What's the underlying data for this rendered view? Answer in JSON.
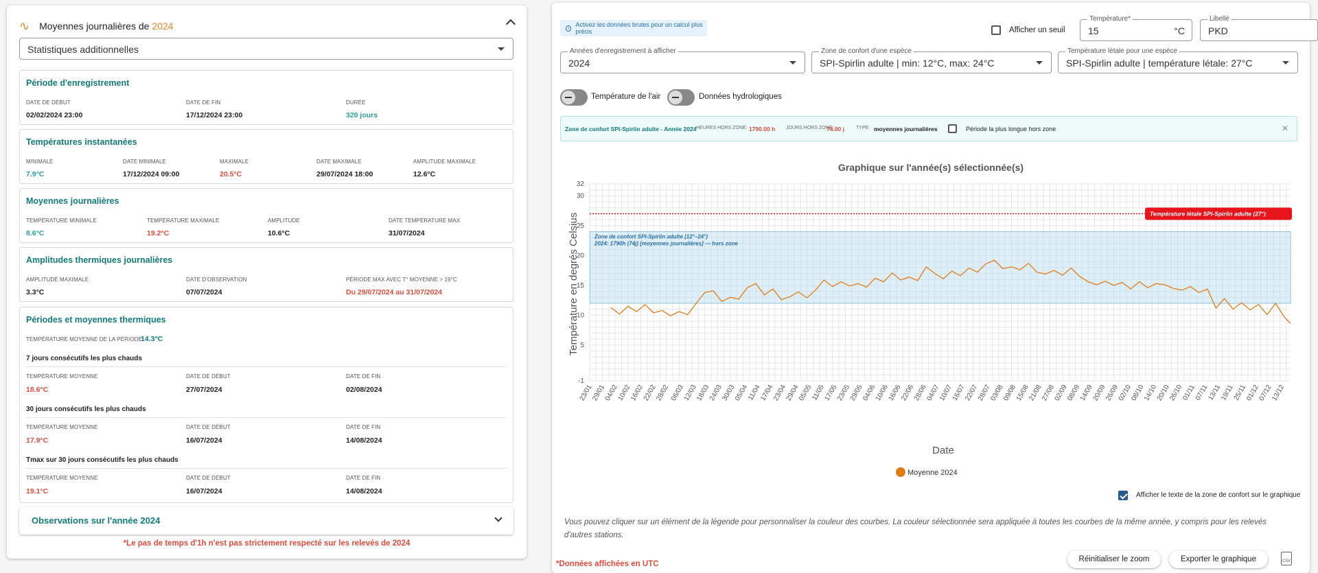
{
  "left": {
    "title_prefix": "Moyennes journalières de",
    "title_year": "2024",
    "select_value": "Statistiques additionnelles",
    "periode": {
      "title": "Période d'enregistrement",
      "start_label": "DATE DE DÉBUT",
      "start": "02/02/2024 23:00",
      "end_label": "DATE DE FIN",
      "end": "17/12/2024 23:00",
      "dur_label": "DURÉE",
      "dur": "320 jours"
    },
    "inst": {
      "title": "Températures instantanées",
      "min_label": "MINIMALE",
      "min": "7.9°C",
      "date_min_label": "DATE MINIMALE",
      "date_min": "17/12/2024 09:00",
      "max_label": "MAXIMALE",
      "max": "20.5°C",
      "date_max_label": "DATE MAXIMALE",
      "date_max": "29/07/2024 18:00",
      "amp_label": "AMPLITUDE MAXIMALE",
      "amp": "12.6°C"
    },
    "moy": {
      "title": "Moyennes journalières",
      "tmin_label": "TEMPÉRATURE MINIMALE",
      "tmin": "8.6°C",
      "tmax_label": "TEMPÉRATURE MAXIMALE",
      "tmax": "19.2°C",
      "amp_label": "AMPLITUDE",
      "amp": "10.6°C",
      "date_label": "DATE TEMPÉRATURE MAX",
      "date": "31/07/2024"
    },
    "ampl": {
      "title": "Amplitudes thermiques journalières",
      "amp_label": "AMPLITUDE MAXIMALE",
      "amp": "3.3°C",
      "obs_label": "DATE D'OBSERVATION",
      "obs": "07/07/2024",
      "per_label": "PÉRIODE MAX AVEC T° MOYENNE > 19°C",
      "per": "Du 29/07/2024 au 31/07/2024"
    },
    "per": {
      "title": "Périodes et moyennes thermiques",
      "avg_label": "TEMPÉRATURE MOYENNE DE LA PÉRIODE",
      "avg": "14.3°C",
      "b1": {
        "title": "7 jours consécutifs les plus chauds",
        "l1": "TEMPÉRATURE MOYENNE",
        "v1": "18.6°C",
        "l2": "DATE DE DÉBUT",
        "v2": "27/07/2024",
        "l3": "DATE DE FIN",
        "v3": "02/08/2024"
      },
      "b2": {
        "title": "30 jours consécutifs les plus chauds",
        "l1": "TEMPÉRATURE MOYENNE",
        "v1": "17.9°C",
        "l2": "DATE DE DÉBUT",
        "v2": "16/07/2024",
        "l3": "DATE DE FIN",
        "v3": "14/08/2024"
      },
      "b3": {
        "title": "Tmax sur 30 jours consécutifs les plus chauds",
        "l1": "TEMPÉRATURE MOYENNE",
        "v1": "19.1°C",
        "l2": "DATE DE DÉBUT",
        "v2": "16/07/2024",
        "l3": "DATE DE FIN",
        "v3": "14/08/2024"
      }
    },
    "obs_title": "Observations sur l'année 2024",
    "warning": "*Le pas de temps d'1h n'est pas strictement respecté sur les relevés de 2024"
  },
  "right": {
    "info": "Activez les données brutes pour un calcul plus précis",
    "seuil_label": "Afficher un seuil",
    "temp_label": "Température*",
    "temp_value": "15",
    "temp_unit": "°C",
    "libelle_label": "Libellé",
    "libelle_value": "PKD",
    "years_label": "Années d'enregistrement à afficher",
    "years_value": "2024",
    "zone_label": "Zone de confort d'une espèce",
    "zone_value": "SPI-Spirlin adulte | min: 12°C, max: 24°C",
    "lethal_label": "Température létale pour une espèce",
    "lethal_value": "SPI-Spirlin adulte | température létale: 27°C",
    "toggle_air": "Température de l'air",
    "toggle_hydro": "Données hydrologiques",
    "zonebar": {
      "title": "Zone de confort SPI-Spirlin adulte - Année 2024",
      "hours_label": "HEURES HORS ZONE:",
      "hours": "1790.00 h",
      "days_label": "JOURS HORS ZONE:",
      "days": "74.00 j",
      "type_label": "TYPE:",
      "type": "moyennes journalières",
      "longest": "Période la plus longue hors zone"
    },
    "show_text_label": "Afficher le texte de la zone de confort sur le graphique",
    "note": "Vous pouvez cliquer sur un élément de la légende pour personnaliser la couleur des courbes. La couleur sélectionnée sera appliquée à toutes les courbes de la même année, y compris pour les relevés d'autres stations.",
    "utc": "*Données affichées en UTC",
    "reset_btn": "Réinitialiser le zoom",
    "export_btn": "Exporter le graphique",
    "csv_label": "CSV"
  },
  "chart_data": {
    "type": "line",
    "title": "Graphique sur l'année(s) sélectionnée(s)",
    "xlabel": "Date",
    "ylabel": "Température en degrés Celsius",
    "y_ticks": [
      -1,
      5,
      10,
      15,
      20,
      25,
      30,
      32
    ],
    "ylim": [
      -1,
      32
    ],
    "x_ticks": [
      "23/01",
      "29/01",
      "04/02",
      "10/02",
      "16/02",
      "22/02",
      "28/02",
      "06/03",
      "12/03",
      "18/03",
      "24/03",
      "30/03",
      "05/04",
      "11/04",
      "17/04",
      "23/04",
      "29/04",
      "05/05",
      "11/05",
      "17/05",
      "23/05",
      "29/05",
      "04/06",
      "10/06",
      "16/06",
      "22/06",
      "28/06",
      "04/07",
      "10/07",
      "16/07",
      "22/07",
      "28/07",
      "03/08",
      "09/08",
      "15/08",
      "21/08",
      "27/08",
      "02/09",
      "08/09",
      "14/09",
      "20/09",
      "26/09",
      "02/10",
      "08/10",
      "14/10",
      "20/10",
      "26/10",
      "01/11",
      "07/11",
      "13/11",
      "19/11",
      "25/11",
      "01/12",
      "07/12",
      "13/12"
    ],
    "x_start": "2024-01-23",
    "x_end": "2024-12-17",
    "comfort_zone": {
      "min": 12,
      "max": 24,
      "label1": "Zone de confort SPI-Spirlin adulte (12°–24°)",
      "label2": "2024: 1790h (74j) [moyennes journalières] — hors zone",
      "color": "#b9dcee"
    },
    "lethal": {
      "value": 27,
      "label": "Température létale SPI-Spirlin adulte (27°)",
      "color": "#e8141b"
    },
    "grid": true,
    "legend": "bottom",
    "series": [
      {
        "name": "Moyenne 2024",
        "color": "#e07b1a",
        "points": [
          [
            "2024-02-02",
            11.3
          ],
          [
            "2024-02-06",
            10.2
          ],
          [
            "2024-02-10",
            11.5
          ],
          [
            "2024-02-14",
            10.6
          ],
          [
            "2024-02-18",
            11.8
          ],
          [
            "2024-02-22",
            10.4
          ],
          [
            "2024-02-26",
            10.8
          ],
          [
            "2024-03-01",
            9.9
          ],
          [
            "2024-03-05",
            10.6
          ],
          [
            "2024-03-09",
            10.1
          ],
          [
            "2024-03-13",
            12.0
          ],
          [
            "2024-03-17",
            13.8
          ],
          [
            "2024-03-21",
            14.1
          ],
          [
            "2024-03-25",
            12.3
          ],
          [
            "2024-03-29",
            13.0
          ],
          [
            "2024-04-02",
            12.7
          ],
          [
            "2024-04-06",
            14.6
          ],
          [
            "2024-04-10",
            15.3
          ],
          [
            "2024-04-14",
            13.4
          ],
          [
            "2024-04-18",
            14.4
          ],
          [
            "2024-04-22",
            12.6
          ],
          [
            "2024-04-26",
            13.1
          ],
          [
            "2024-04-30",
            13.9
          ],
          [
            "2024-05-04",
            12.9
          ],
          [
            "2024-05-08",
            14.2
          ],
          [
            "2024-05-12",
            15.9
          ],
          [
            "2024-05-16",
            14.8
          ],
          [
            "2024-05-20",
            15.6
          ],
          [
            "2024-05-24",
            14.9
          ],
          [
            "2024-05-28",
            15.3
          ],
          [
            "2024-06-01",
            14.7
          ],
          [
            "2024-06-05",
            16.2
          ],
          [
            "2024-06-09",
            15.6
          ],
          [
            "2024-06-13",
            17.1
          ],
          [
            "2024-06-17",
            15.9
          ],
          [
            "2024-06-21",
            16.4
          ],
          [
            "2024-06-25",
            15.8
          ],
          [
            "2024-06-29",
            18.1
          ],
          [
            "2024-07-03",
            17.0
          ],
          [
            "2024-07-07",
            16.1
          ],
          [
            "2024-07-11",
            17.4
          ],
          [
            "2024-07-15",
            16.6
          ],
          [
            "2024-07-19",
            17.9
          ],
          [
            "2024-07-23",
            17.2
          ],
          [
            "2024-07-27",
            18.6
          ],
          [
            "2024-07-31",
            19.2
          ],
          [
            "2024-08-04",
            17.8
          ],
          [
            "2024-08-08",
            18.1
          ],
          [
            "2024-08-12",
            17.6
          ],
          [
            "2024-08-16",
            18.7
          ],
          [
            "2024-08-20",
            17.2
          ],
          [
            "2024-08-24",
            16.9
          ],
          [
            "2024-08-28",
            17.5
          ],
          [
            "2024-09-01",
            16.7
          ],
          [
            "2024-09-05",
            17.9
          ],
          [
            "2024-09-09",
            16.5
          ],
          [
            "2024-09-13",
            15.6
          ],
          [
            "2024-09-17",
            15.1
          ],
          [
            "2024-09-21",
            15.7
          ],
          [
            "2024-09-25",
            15.0
          ],
          [
            "2024-09-29",
            15.5
          ],
          [
            "2024-10-03",
            14.4
          ],
          [
            "2024-10-07",
            15.6
          ],
          [
            "2024-10-11",
            14.6
          ],
          [
            "2024-10-15",
            15.3
          ],
          [
            "2024-10-19",
            15.1
          ],
          [
            "2024-10-23",
            14.5
          ],
          [
            "2024-10-27",
            14.2
          ],
          [
            "2024-10-31",
            14.8
          ],
          [
            "2024-11-04",
            13.8
          ],
          [
            "2024-11-08",
            14.4
          ],
          [
            "2024-11-12",
            11.2
          ],
          [
            "2024-11-16",
            12.8
          ],
          [
            "2024-11-20",
            11.0
          ],
          [
            "2024-11-24",
            12.1
          ],
          [
            "2024-11-28",
            10.9
          ],
          [
            "2024-12-02",
            11.8
          ],
          [
            "2024-12-06",
            10.1
          ],
          [
            "2024-12-10",
            12.0
          ],
          [
            "2024-12-14",
            9.7
          ],
          [
            "2024-12-17",
            8.6
          ]
        ]
      }
    ]
  }
}
